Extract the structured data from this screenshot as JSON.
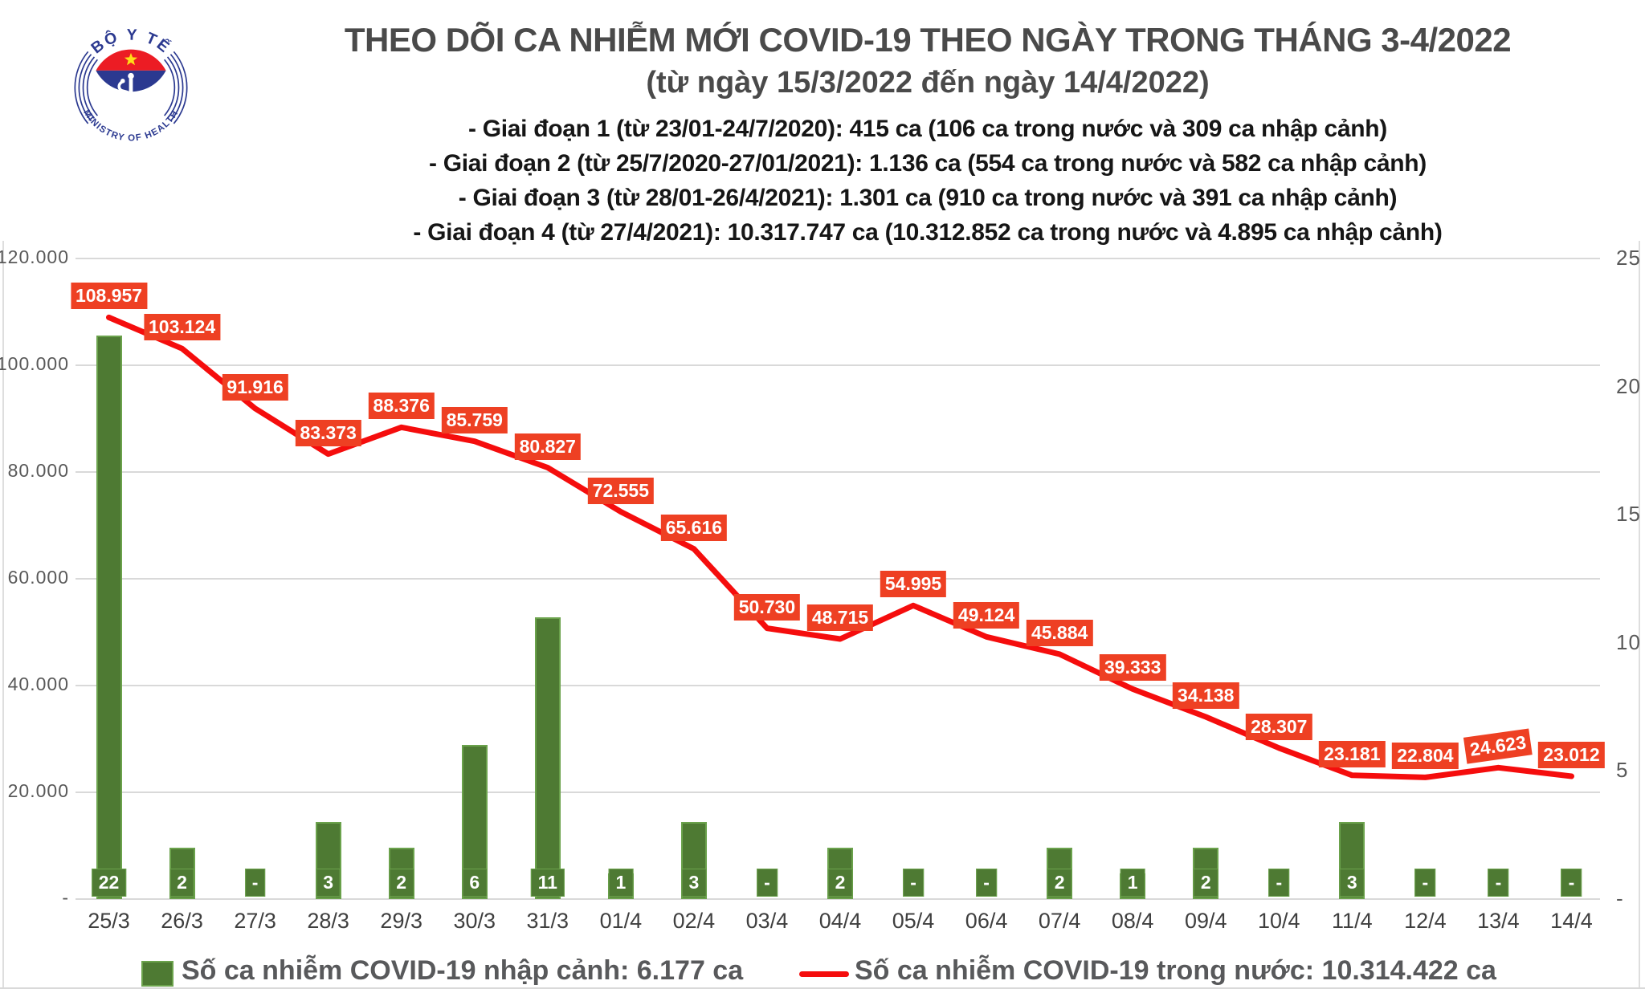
{
  "logo": {
    "top_text": "BỘ Y TẾ",
    "bottom_text": "MINISTRY OF HEALTH",
    "colors": {
      "blue": "#2b3990",
      "red": "#ec1c24",
      "star": "#ffde17"
    }
  },
  "header": {
    "title": "THEO DÕI CA NHIỄM MỚI COVID-19 THEO NGÀY TRONG THÁNG 3-4/2022",
    "subtitle": "(từ ngày 15/3/2022 đến ngày 14/4/2022)",
    "bullets": [
      "- Giai đoạn 1 (từ 23/01-24/7/2020): 415 ca (106 ca trong nước và 309 ca nhập cảnh)",
      "- Giai đoạn 2 (từ 25/7/2020-27/01/2021): 1.136 ca (554 ca trong nước và 582 ca nhập cảnh)",
      "- Giai đoạn 3 (từ 28/01-26/4/2021): 1.301 ca (910 ca trong nước và 391 ca nhập cảnh)",
      "- Giai đoạn 4 (từ 27/4/2021): 10.317.747 ca (10.312.852 ca trong nước và 4.895 ca nhập cảnh)"
    ]
  },
  "chart_data": {
    "type": "bar+line",
    "title": "THEO DÕI CA NHIỄM MỚI COVID-19 THEO NGÀY TRONG THÁNG 3-4/2022",
    "grid": true,
    "categories": [
      "25/3",
      "26/3",
      "27/3",
      "28/3",
      "29/3",
      "30/3",
      "31/3",
      "01/4",
      "02/4",
      "03/4",
      "04/4",
      "05/4",
      "06/4",
      "07/4",
      "08/4",
      "09/4",
      "10/4",
      "11/4",
      "12/4",
      "13/4",
      "14/4"
    ],
    "series": [
      {
        "name": "Số ca nhiễm COVID-19 nhập cảnh",
        "type": "bar",
        "axis": "right",
        "color": "#4e7a33",
        "values": [
          22,
          2,
          null,
          3,
          2,
          6,
          11,
          1,
          3,
          null,
          2,
          null,
          null,
          2,
          1,
          2,
          null,
          3,
          null,
          null,
          null
        ],
        "labels": [
          "22",
          "2",
          "-",
          "3",
          "2",
          "6",
          "11",
          "1",
          "3",
          "-",
          "2",
          "-",
          "-",
          "2",
          "1",
          "2",
          "-",
          "3",
          "-",
          "-",
          "-"
        ]
      },
      {
        "name": "Số ca nhiễm COVID-19 trong nước",
        "type": "line",
        "axis": "left",
        "color": "#f50d0d",
        "label_box_color": "#ee4023",
        "values": [
          108957,
          103124,
          91916,
          83373,
          88376,
          85759,
          80827,
          72555,
          65616,
          50730,
          48715,
          54995,
          49124,
          45884,
          39333,
          34138,
          28307,
          23181,
          22804,
          24623,
          23012
        ],
        "labels": [
          "108.957",
          "103.124",
          "91.916",
          "83.373",
          "88.376",
          "85.759",
          "80.827",
          "72.555",
          "65.616",
          "50.730",
          "48.715",
          "54.995",
          "49.124",
          "45.884",
          "39.333",
          "34.138",
          "28.307",
          "23.181",
          "22.804",
          "24.623",
          "23.012"
        ]
      }
    ],
    "left_axis": {
      "max": 120000,
      "tick_values": [
        120000,
        100000,
        80000,
        60000,
        40000,
        20000,
        0
      ],
      "tick_labels": [
        "120.000",
        "100.000",
        "80.000",
        "60.000",
        "40.000",
        "20.000",
        "-"
      ]
    },
    "right_axis": {
      "max": 25,
      "tick_values": [
        25,
        20,
        15,
        10,
        5,
        0
      ],
      "tick_labels": [
        "25",
        "20",
        "15",
        "10",
        "5",
        "-"
      ]
    },
    "legend_position": "bottom"
  },
  "legend": {
    "bar_label": "Số ca nhiễm COVID-19 nhập cảnh: 6.177 ca",
    "line_label": "Số ca nhiễm COVID-19 trong nước: 10.314.422 ca"
  },
  "colors": {
    "bar_green": "#4e7a33",
    "bar_green_edge": "#6ba24c",
    "line_red": "#f50d0d",
    "data_label_orange": "#ee4023",
    "grid_gray": "#d9d9d9",
    "axis_text_gray": "#595959"
  }
}
